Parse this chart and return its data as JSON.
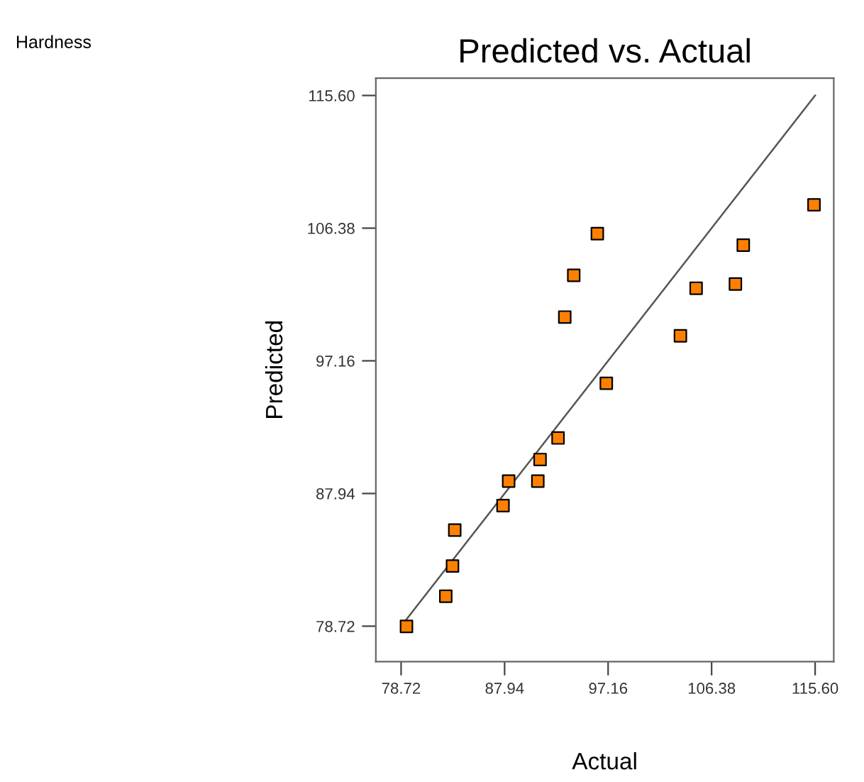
{
  "chart_data": {
    "type": "scatter",
    "title": "Predicted vs. Actual",
    "xlabel": "Actual",
    "ylabel": "Predicted",
    "annotations": [
      "Hardness"
    ],
    "xlim": [
      76.47,
      117.26
    ],
    "ylim": [
      76.26,
      116.8
    ],
    "xticks": [
      {
        "value": 78.72,
        "label": "78.72"
      },
      {
        "value": 87.94,
        "label": "87.94"
      },
      {
        "value": 97.16,
        "label": "97.16"
      },
      {
        "value": 106.38,
        "label": "106.38"
      },
      {
        "value": 115.6,
        "label": "115.60"
      }
    ],
    "yticks": [
      {
        "value": 78.72,
        "label": "78.72"
      },
      {
        "value": 87.94,
        "label": "87.94"
      },
      {
        "value": 97.16,
        "label": "97.16"
      },
      {
        "value": 106.38,
        "label": "106.38"
      },
      {
        "value": 115.6,
        "label": "115.60"
      }
    ],
    "grid": false,
    "legend": false,
    "marker": "square",
    "series": [
      {
        "color": "#ff8000",
        "x": [
          115.5,
          109.2,
          108.5,
          105.0,
          103.6,
          96.2,
          94.1,
          93.3,
          97.0,
          92.7,
          91.1,
          90.9,
          88.3,
          87.8,
          83.5,
          83.3,
          82.7,
          79.2
        ],
        "values": [
          108.0,
          105.2,
          102.5,
          102.2,
          98.9,
          106.0,
          103.1,
          100.2,
          95.6,
          91.8,
          90.3,
          88.8,
          88.8,
          87.1,
          85.4,
          82.9,
          80.8,
          78.7
        ]
      },
      {
        "type": "line",
        "color": "#555555",
        "x": [
          78.72,
          115.6
        ],
        "values": [
          78.72,
          115.6
        ],
        "marker": "none",
        "line_style": "solid"
      }
    ]
  }
}
